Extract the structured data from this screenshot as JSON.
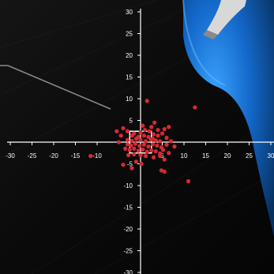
{
  "chart_data": {
    "type": "scatter",
    "title": "",
    "xlabel": "",
    "ylabel": "",
    "xlim": [
      -30,
      30
    ],
    "ylim": [
      -30,
      30
    ],
    "x_ticks": [
      -30,
      -25,
      -20,
      -15,
      -10,
      5,
      10,
      15,
      20,
      25,
      30
    ],
    "x_tick_labels": [
      "-30",
      "-25",
      "-20",
      "-15",
      "-10",
      "5",
      "10",
      "15",
      "20",
      "25",
      "30"
    ],
    "y_ticks": [
      30,
      25,
      20,
      15,
      10,
      5,
      -5,
      -10,
      -15,
      -20,
      -25,
      -30
    ],
    "y_tick_labels": [
      "30",
      "25",
      "20",
      "15",
      "10",
      "5",
      "-5",
      "-10",
      "-15",
      "-20",
      "-25",
      "-30"
    ],
    "grid": false,
    "center_box": {
      "x_range": [
        -2.5,
        2.5
      ],
      "y_range": [
        -2.5,
        2.5
      ]
    },
    "colors": {
      "background": "#000000",
      "axis": "#ffffff",
      "point": "#d72a32",
      "box": "#ffffff"
    },
    "series": [
      {
        "values": [
          [
            1.5,
            9.5
          ],
          [
            12.5,
            8.0
          ],
          [
            -11.5,
            -3.2
          ],
          [
            11.0,
            -9.0
          ],
          [
            -3.0,
            2.5
          ],
          [
            -1.5,
            2.0
          ],
          [
            0.0,
            2.2
          ],
          [
            1.0,
            2.8
          ],
          [
            2.0,
            2.5
          ],
          [
            3.0,
            1.8
          ],
          [
            -2.0,
            1.5
          ],
          [
            -0.5,
            1.2
          ],
          [
            0.8,
            1.5
          ],
          [
            1.8,
            1.2
          ],
          [
            2.8,
            0.8
          ],
          [
            4.0,
            1.5
          ],
          [
            5.0,
            2.0
          ],
          [
            6.0,
            1.0
          ],
          [
            -3.0,
            0.5
          ],
          [
            -2.0,
            0.3
          ],
          [
            -1.0,
            0.8
          ],
          [
            0.0,
            0.5
          ],
          [
            1.2,
            0.2
          ],
          [
            2.4,
            0.6
          ],
          [
            3.5,
            0.4
          ],
          [
            4.5,
            0.2
          ],
          [
            -3.0,
            -0.5
          ],
          [
            -2.2,
            -0.8
          ],
          [
            -1.2,
            -0.4
          ],
          [
            -0.2,
            -0.9
          ],
          [
            0.8,
            -0.6
          ],
          [
            1.8,
            -1.0
          ],
          [
            2.8,
            -0.5
          ],
          [
            3.8,
            -0.8
          ],
          [
            4.8,
            -1.2
          ],
          [
            6.0,
            -0.6
          ],
          [
            -2.5,
            -1.8
          ],
          [
            -1.5,
            -1.5
          ],
          [
            -0.5,
            -2.0
          ],
          [
            0.5,
            -1.7
          ],
          [
            1.5,
            -2.2
          ],
          [
            2.5,
            -1.9
          ],
          [
            3.5,
            -2.1
          ],
          [
            4.5,
            -2.6
          ],
          [
            5.2,
            -1.8
          ],
          [
            -2.8,
            -3.0
          ],
          [
            -1.5,
            -2.8
          ],
          [
            0.0,
            -3.0
          ],
          [
            1.2,
            -3.2
          ],
          [
            3.0,
            -3.5
          ],
          [
            4.5,
            -3.2
          ],
          [
            5.5,
            -4.0
          ],
          [
            -1.0,
            -4.5
          ],
          [
            0.2,
            -5.0
          ],
          [
            -2.0,
            -6.0
          ],
          [
            4.8,
            -6.5
          ],
          [
            5.5,
            -6.8
          ],
          [
            -4.0,
            -5.2
          ],
          [
            -5.0,
            0.0
          ],
          [
            -4.5,
            1.5
          ],
          [
            -5.5,
            2.5
          ],
          [
            -4.0,
            3.2
          ],
          [
            0.5,
            3.8
          ],
          [
            2.5,
            3.5
          ],
          [
            4.0,
            2.8
          ],
          [
            5.5,
            3.0
          ],
          [
            6.5,
            3.5
          ],
          [
            7.0,
            0.2
          ],
          [
            7.8,
            -1.0
          ],
          [
            6.5,
            -2.5
          ],
          [
            -3.5,
            -1.5
          ],
          [
            3.2,
            4.5
          ]
        ]
      }
    ]
  }
}
